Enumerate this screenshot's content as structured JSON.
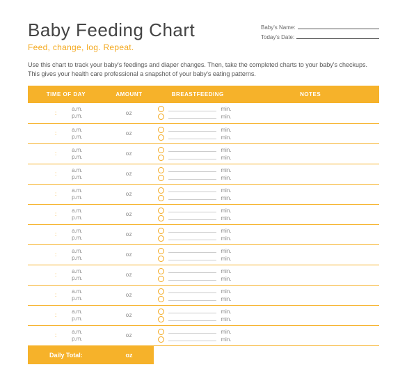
{
  "header": {
    "title": "Baby Feeding Chart",
    "subtitle": "Feed, change, log. Repeat.",
    "meta": {
      "name_label": "Baby's Name:",
      "date_label": "Today's Date:"
    }
  },
  "instructions": "Use this chart to track your baby's feedings and diaper changes. Then, take the completed charts to your baby's checkups. This gives your health care professional a snapshot of your baby's eating patterns.",
  "columns": {
    "time": "TIME OF DAY",
    "amount": "AMOUNT",
    "breastfeeding": "BREASTFEEDING",
    "notes": "NOTES"
  },
  "row_labels": {
    "colon": ":",
    "am": "a.m.",
    "pm": "p.m.",
    "oz": "oz",
    "min": "min."
  },
  "row_count": 12,
  "footer": {
    "label": "Daily Total:",
    "unit": "oz"
  },
  "colors": {
    "accent": "#f6b22a",
    "accent_text": "#f4a91f",
    "heading": "#444",
    "body": "#555",
    "muted": "#888",
    "rule": "#ccc"
  }
}
